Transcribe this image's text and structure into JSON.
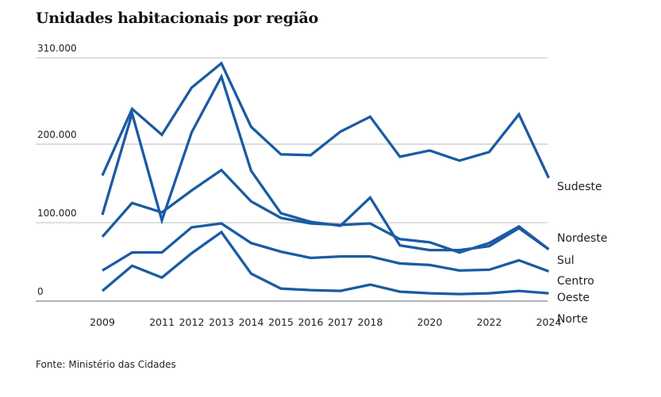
{
  "title": "Unidades habitacionais por região",
  "source": "Fonte: Ministério das Cidades",
  "line_color": "#1a5ba3",
  "chart_data": {
    "type": "line",
    "title": "Unidades habitacionais por região",
    "xlabel": "",
    "ylabel": "",
    "ylim": [
      0,
      310000
    ],
    "yticks": [
      0,
      100000,
      200000,
      310000
    ],
    "ytick_labels": [
      "0",
      "100.000",
      "200.000",
      "310.000"
    ],
    "x": [
      2009,
      2010,
      2011,
      2012,
      2013,
      2014,
      2015,
      2016,
      2017,
      2018,
      2019,
      2020,
      2021,
      2022,
      2023,
      2024
    ],
    "xtick_values": [
      2009,
      2011,
      2012,
      2013,
      2014,
      2015,
      2016,
      2017,
      2018,
      2020,
      2022,
      2024
    ],
    "xtick_labels": [
      "2009",
      "2011",
      "2012",
      "2013",
      "2014",
      "2015",
      "2016",
      "2017",
      "2018",
      "2020",
      "2022",
      "2024"
    ],
    "grid": "horizontal",
    "legend": "direct labels at right end of lines",
    "series": [
      {
        "name": "Sudeste",
        "label_lines": [
          "Sudeste"
        ],
        "values": [
          160000,
          245000,
          212000,
          272000,
          303000,
          222000,
          187000,
          186000,
          216000,
          235000,
          184000,
          192000,
          179000,
          190000,
          238000,
          157000
        ]
      },
      {
        "name": "Nordeste",
        "label_lines": [
          "Nordeste"
        ],
        "values": [
          110000,
          239000,
          103000,
          215000,
          286000,
          166000,
          112000,
          101000,
          96000,
          132000,
          71000,
          65000,
          65000,
          70000,
          93000,
          66000
        ]
      },
      {
        "name": "Sul",
        "label_lines": [
          "Sul"
        ],
        "values": [
          82000,
          125000,
          113000,
          141000,
          167000,
          127000,
          106000,
          99000,
          97000,
          99000,
          79000,
          75000,
          62000,
          74000,
          95000,
          66000
        ]
      },
      {
        "name": "Centro Oeste",
        "label_lines": [
          "Centro",
          "Oeste"
        ],
        "values": [
          39000,
          62000,
          62000,
          94000,
          99000,
          74000,
          63000,
          55000,
          57000,
          57000,
          48000,
          46000,
          39000,
          40000,
          52000,
          38000
        ]
      },
      {
        "name": "Norte",
        "label_lines": [
          "Norte"
        ],
        "values": [
          13000,
          45000,
          30000,
          61000,
          88000,
          35000,
          16000,
          14000,
          13000,
          21000,
          12000,
          10000,
          9000,
          10000,
          13000,
          10000
        ]
      }
    ]
  }
}
